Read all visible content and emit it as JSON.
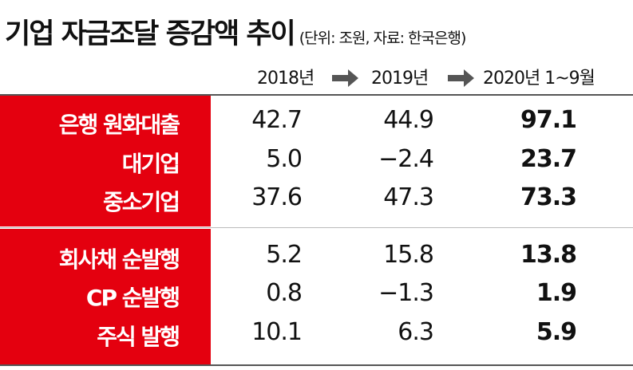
{
  "title": "기업 자금조달 증감액 추이",
  "source": "(단위: 조원, 자료: 한국은행)",
  "colors": {
    "red": "#e4000f",
    "text": "#111111",
    "arrow": "#555555"
  },
  "chart_data": {
    "type": "table",
    "columns": [
      "2018년",
      "2019년",
      "2020년 1~9월"
    ],
    "groups": [
      {
        "rows": [
          {
            "label": "은행 원화대출",
            "values": [
              "42.7",
              "44.9",
              "97.1"
            ]
          },
          {
            "label": "대기업",
            "values": [
              "5.0",
              "−2.4",
              "23.7"
            ]
          },
          {
            "label": "중소기업",
            "values": [
              "37.6",
              "47.3",
              "73.3"
            ]
          }
        ]
      },
      {
        "rows": [
          {
            "label": "회사채 순발행",
            "values": [
              "5.2",
              "15.8",
              "13.8"
            ]
          },
          {
            "label": "CP 순발행",
            "values": [
              "0.8",
              "−1.3",
              "1.9"
            ]
          },
          {
            "label": "주식 발행",
            "values": [
              "10.1",
              "6.3",
              "5.9"
            ]
          }
        ]
      }
    ]
  }
}
